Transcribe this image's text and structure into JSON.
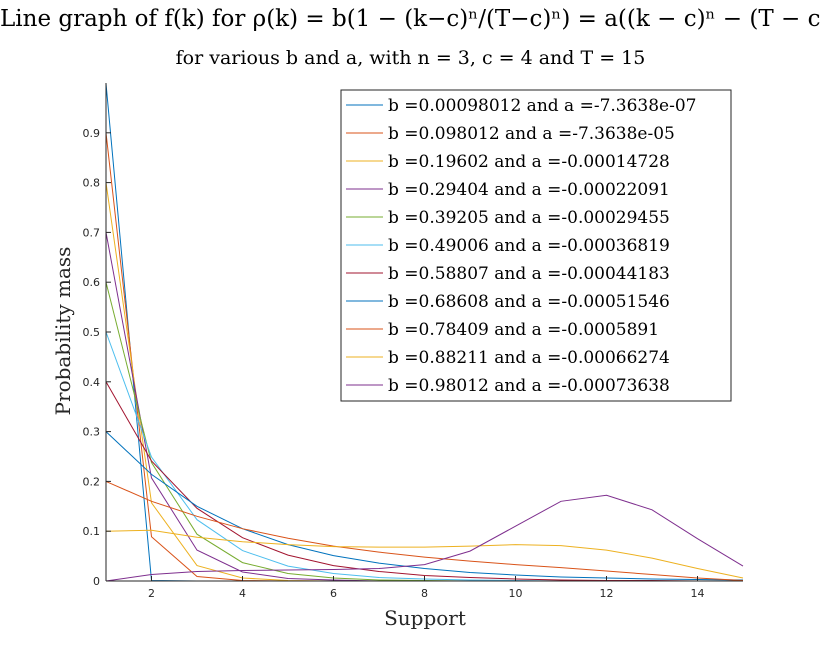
{
  "title": "Line graph of f(k) for ρ(k) = b(1 − (k−c)ⁿ/(T−c)ⁿ) = a((k − c)ⁿ − (T − c)ⁿ)",
  "subtitle": "for various b and a, with n = 3, c = 4 and T = 15",
  "chart_data": {
    "type": "line",
    "title": "Line graph of f(k) for ρ(k) = b(1 − (k−c)ⁿ/(T−c)ⁿ) = a((k − c)ⁿ − (T − c)ⁿ)",
    "subtitle": "for various b and a, with n = 3, c = 4 and T = 15",
    "xlabel": "Support",
    "ylabel": "Probability mass",
    "xlim": [
      1,
      15
    ],
    "ylim": [
      0,
      1
    ],
    "xticks": [
      2,
      4,
      6,
      8,
      10,
      12,
      14
    ],
    "yticks": [
      0,
      0.1,
      0.2,
      0.3,
      0.4,
      0.5,
      0.6,
      0.7,
      0.8,
      0.9
    ],
    "grid": false,
    "legend_position": "top-right",
    "x": [
      1,
      2,
      3,
      4,
      5,
      6,
      7,
      8,
      9,
      10,
      11,
      12,
      13,
      14,
      15
    ],
    "series": [
      {
        "name": "b =0.00098012 and a =-7.3638e-07",
        "color": "#0072BD",
        "values": [
          0.999,
          0.001,
          0,
          0,
          0,
          0,
          0,
          0,
          0,
          0,
          0,
          0,
          0,
          0,
          0
        ]
      },
      {
        "name": "b =0.098012 and a =-7.3638e-05",
        "color": "#D95319",
        "values": [
          0.9,
          0.089,
          0.009,
          0.001,
          0,
          0,
          0,
          0,
          0,
          0,
          0,
          0,
          0,
          0,
          0
        ]
      },
      {
        "name": "b =0.19602 and a =-0.00014728",
        "color": "#EDB120",
        "values": [
          0.8,
          0.157,
          0.031,
          0.006,
          0.001,
          0,
          0,
          0,
          0,
          0,
          0,
          0,
          0,
          0,
          0
        ]
      },
      {
        "name": "b =0.29404 and a =-0.00022091",
        "color": "#7E2F8E",
        "values": [
          0.7,
          0.207,
          0.062,
          0.018,
          0.005,
          0.002,
          0,
          0,
          0,
          0,
          0,
          0,
          0,
          0,
          0
        ]
      },
      {
        "name": "b =0.39205 and a =-0.00029455",
        "color": "#77AC30",
        "values": [
          0.6,
          0.238,
          0.094,
          0.037,
          0.015,
          0.006,
          0.002,
          0.001,
          0,
          0,
          0,
          0,
          0,
          0,
          0
        ]
      },
      {
        "name": "b =0.49006 and a =-0.00036819",
        "color": "#4DBEEE",
        "values": [
          0.5,
          0.249,
          0.123,
          0.061,
          0.03,
          0.015,
          0.007,
          0.004,
          0.002,
          0.001,
          0,
          0,
          0,
          0,
          0
        ]
      },
      {
        "name": "b =0.58807 and a =-0.00044183",
        "color": "#A2142F",
        "values": [
          0.4,
          0.241,
          0.146,
          0.087,
          0.052,
          0.031,
          0.019,
          0.011,
          0.007,
          0.004,
          0.002,
          0.001,
          0.001,
          0,
          0
        ]
      },
      {
        "name": "b =0.68608 and a =-0.00051546",
        "color": "#0072BD",
        "values": [
          0.3,
          0.214,
          0.15,
          0.105,
          0.073,
          0.051,
          0.036,
          0.025,
          0.017,
          0.012,
          0.008,
          0.006,
          0.004,
          0.003,
          0.002
        ]
      },
      {
        "name": "b =0.78409 and a =-0.0005891",
        "color": "#D95319",
        "values": [
          0.2,
          0.16,
          0.13,
          0.105,
          0.086,
          0.07,
          0.058,
          0.048,
          0.04,
          0.033,
          0.027,
          0.02,
          0.013,
          0.006,
          0.001
        ]
      },
      {
        "name": "b =0.88211 and a =-0.00066274",
        "color": "#EDB120",
        "values": [
          0.1,
          0.102,
          0.088,
          0.079,
          0.073,
          0.069,
          0.068,
          0.068,
          0.07,
          0.073,
          0.071,
          0.062,
          0.046,
          0.025,
          0.006
        ]
      },
      {
        "name": "b =0.98012 and a =-0.00073638",
        "color": "#7E2F8E",
        "values": [
          0.0,
          0.013,
          0.019,
          0.021,
          0.022,
          0.023,
          0.025,
          0.033,
          0.06,
          0.11,
          0.16,
          0.172,
          0.143,
          0.085,
          0.03
        ]
      }
    ]
  }
}
